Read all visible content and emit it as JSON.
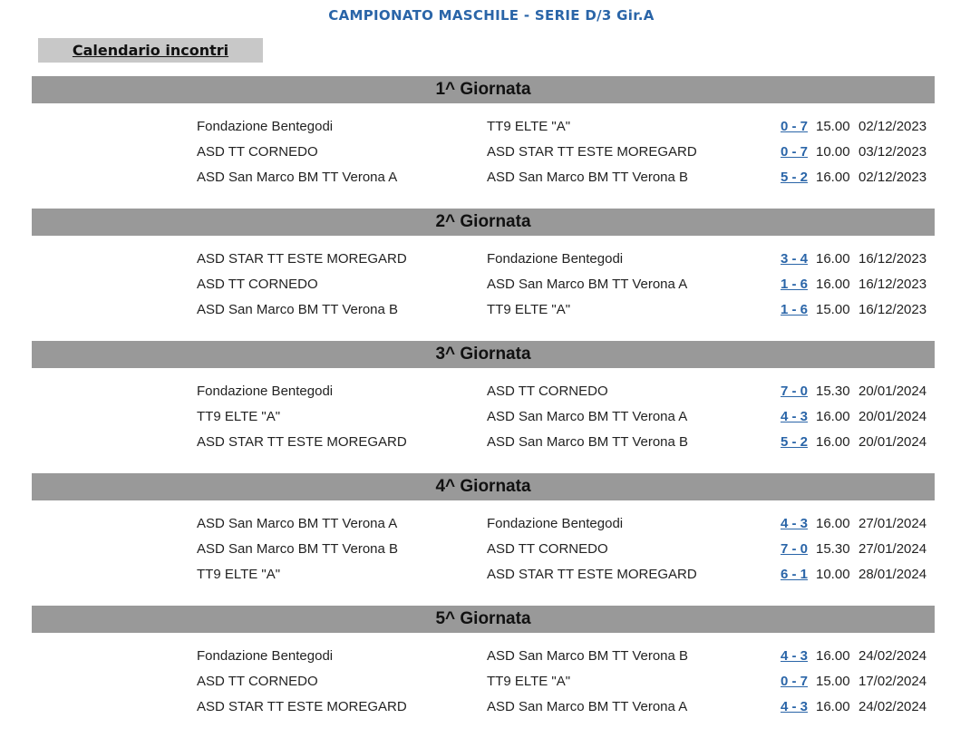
{
  "page": {
    "title": "CAMPIONATO MASCHILE - SERIE D/3 Gir.A",
    "calendar_link": "Calendario incontri"
  },
  "colors": {
    "title": "#2a65a8",
    "score_link": "#2a65a8",
    "round_header_bg": "#999999",
    "calendar_box_bg": "#c8c8c8"
  },
  "rounds": [
    {
      "title": "1^ Giornata",
      "matches": [
        {
          "home": "Fondazione Bentegodi",
          "away": "TT9 ELTE \"A\"",
          "score": "0 - 7",
          "time": "15.00",
          "date": "02/12/2023"
        },
        {
          "home": "ASD TT CORNEDO",
          "away": "ASD STAR TT ESTE MOREGARD",
          "score": "0 - 7",
          "time": "10.00",
          "date": "03/12/2023"
        },
        {
          "home": "ASD San Marco BM TT Verona A",
          "away": "ASD San Marco BM TT Verona B",
          "score": "5 - 2",
          "time": "16.00",
          "date": "02/12/2023"
        }
      ]
    },
    {
      "title": "2^ Giornata",
      "matches": [
        {
          "home": "ASD STAR TT ESTE MOREGARD",
          "away": "Fondazione Bentegodi",
          "score": "3 - 4",
          "time": "16.00",
          "date": "16/12/2023"
        },
        {
          "home": "ASD TT CORNEDO",
          "away": "ASD San Marco BM TT Verona A",
          "score": "1 - 6",
          "time": "16.00",
          "date": "16/12/2023"
        },
        {
          "home": "ASD San Marco BM TT Verona B",
          "away": "TT9 ELTE \"A\"",
          "score": "1 - 6",
          "time": "15.00",
          "date": "16/12/2023"
        }
      ]
    },
    {
      "title": "3^ Giornata",
      "matches": [
        {
          "home": "Fondazione Bentegodi",
          "away": "ASD TT CORNEDO",
          "score": "7 - 0",
          "time": "15.30",
          "date": "20/01/2024"
        },
        {
          "home": "TT9 ELTE \"A\"",
          "away": "ASD San Marco BM TT Verona A",
          "score": "4 - 3",
          "time": "16.00",
          "date": "20/01/2024"
        },
        {
          "home": "ASD STAR TT ESTE MOREGARD",
          "away": "ASD San Marco BM TT Verona B",
          "score": "5 - 2",
          "time": "16.00",
          "date": "20/01/2024"
        }
      ]
    },
    {
      "title": "4^ Giornata",
      "matches": [
        {
          "home": "ASD San Marco BM TT Verona A",
          "away": "Fondazione Bentegodi",
          "score": "4 - 3",
          "time": "16.00",
          "date": "27/01/2024"
        },
        {
          "home": "ASD San Marco BM TT Verona B",
          "away": "ASD TT CORNEDO",
          "score": "7 - 0",
          "time": "15.30",
          "date": "27/01/2024"
        },
        {
          "home": "TT9 ELTE \"A\"",
          "away": "ASD STAR TT ESTE MOREGARD",
          "score": "6 - 1",
          "time": "10.00",
          "date": "28/01/2024"
        }
      ]
    },
    {
      "title": "5^ Giornata",
      "matches": [
        {
          "home": "Fondazione Bentegodi",
          "away": "ASD San Marco BM TT Verona B",
          "score": "4 - 3",
          "time": "16.00",
          "date": "24/02/2024"
        },
        {
          "home": "ASD TT CORNEDO",
          "away": "TT9 ELTE \"A\"",
          "score": "0 - 7",
          "time": "15.00",
          "date": "17/02/2024"
        },
        {
          "home": "ASD STAR TT ESTE MOREGARD",
          "away": "ASD San Marco BM TT Verona A",
          "score": "4 - 3",
          "time": "16.00",
          "date": "24/02/2024"
        }
      ]
    }
  ]
}
